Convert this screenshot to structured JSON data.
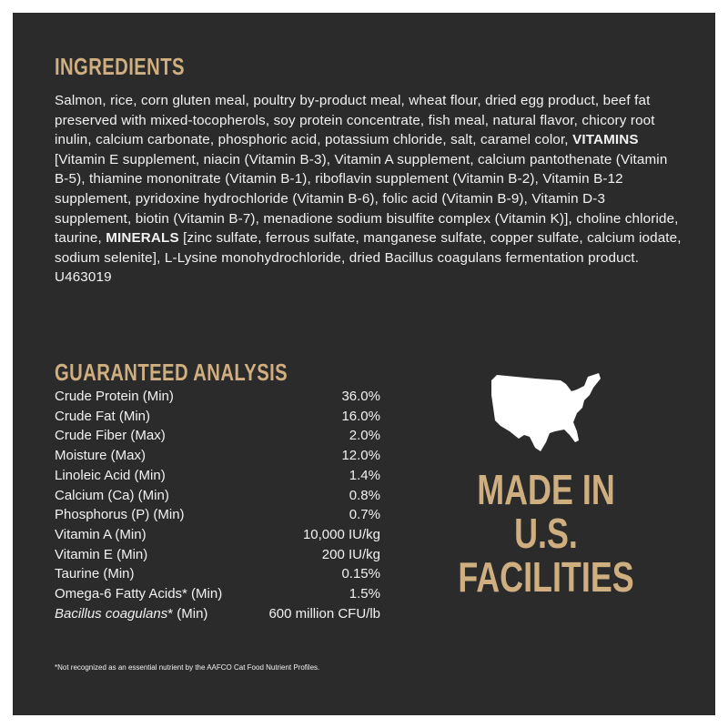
{
  "ingredients": {
    "title": "INGREDIENTS",
    "parts": [
      "Salmon, rice, corn gluten meal, poultry by-product meal, wheat flour, dried egg product, beef fat preserved with mixed-tocopherols, soy protein concentrate, fish meal, natural flavor, chicory root inulin, calcium carbonate, phosphoric acid, potassium chloride, salt, caramel color, ",
      "VITAMINS",
      " [Vitamin E supplement, niacin (Vitamin B-3), Vitamin A supplement, calcium pantothenate (Vitamin B-5), thiamine mononitrate (Vitamin B-1), riboflavin supplement (Vitamin B-2), Vitamin B-12 supplement, pyridoxine hydrochloride (Vitamin B-6), folic acid (Vitamin B-9), Vitamin D-3 supplement, biotin (Vitamin B-7), menadione sodium bisulfite complex (Vitamin K)], choline chloride, taurine, ",
      "MINERALS",
      " [zinc sulfate, ferrous sulfate, manganese sulfate, copper sulfate, calcium iodate, sodium selenite], L-Lysine monohydrochloride, dried Bacillus coagulans fermentation product."
    ],
    "code": "U463019"
  },
  "analysis": {
    "title": "GUARANTEED ANALYSIS",
    "rows": [
      {
        "label": "Crude Protein (Min)",
        "value": "36.0%"
      },
      {
        "label": "Crude Fat (Min)",
        "value": "16.0%"
      },
      {
        "label": "Crude Fiber (Max)",
        "value": "2.0%"
      },
      {
        "label": "Moisture (Max)",
        "value": "12.0%"
      },
      {
        "label": "Linoleic Acid (Min)",
        "value": "1.4%"
      },
      {
        "label": "Calcium (Ca) (Min)",
        "value": "0.8%"
      },
      {
        "label": "Phosphorus (P) (Min)",
        "value": "0.7%"
      },
      {
        "label": "Vitamin A (Min)",
        "value": "10,000 IU/kg"
      },
      {
        "label": "Vitamin E (Min)",
        "value": "200 IU/kg"
      },
      {
        "label": "Taurine (Min)",
        "value": "0.15%"
      },
      {
        "label": "Omega-6 Fatty Acids* (Min)",
        "value": "1.5%"
      },
      {
        "label_italic": "Bacillus coagulans",
        "label": "* (Min)",
        "value": "600 million CFU/lb"
      }
    ]
  },
  "origin": {
    "lines": [
      "MADE IN",
      "U.S.",
      "FACILITIES"
    ]
  },
  "footnote": "*Not recognized as an essential nutrient by the AAFCO Cat Food Nutrient Profiles."
}
